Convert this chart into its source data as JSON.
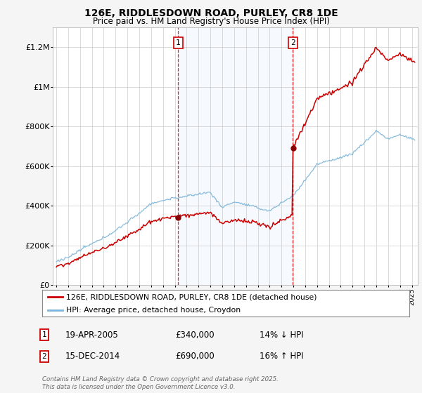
{
  "title": "126E, RIDDLESDOWN ROAD, PURLEY, CR8 1DE",
  "subtitle": "Price paid vs. HM Land Registry's House Price Index (HPI)",
  "footnote": "Contains HM Land Registry data © Crown copyright and database right 2025.\nThis data is licensed under the Open Government Licence v3.0.",
  "legend_label_red": "126E, RIDDLESDOWN ROAD, PURLEY, CR8 1DE (detached house)",
  "legend_label_blue": "HPI: Average price, detached house, Croydon",
  "sale1_label": "1",
  "sale1_date": "19-APR-2005",
  "sale1_price": "£340,000",
  "sale1_hpi": "14% ↓ HPI",
  "sale2_label": "2",
  "sale2_date": "15-DEC-2014",
  "sale2_price": "£690,000",
  "sale2_hpi": "16% ↑ HPI",
  "ylim": [
    0,
    1300000
  ],
  "yticks": [
    0,
    200000,
    400000,
    600000,
    800000,
    1000000,
    1200000
  ],
  "ytick_labels": [
    "£0",
    "£200K",
    "£400K",
    "£600K",
    "£800K",
    "£1M",
    "£1.2M"
  ],
  "background_color": "#f5f5f5",
  "plot_bg_color": "#ffffff",
  "hpi_color": "#7ab4d8",
  "price_color": "#cc0000",
  "sale1_x": 2005.29,
  "sale2_x": 2014.96,
  "vline1_x": 2005.29,
  "vline2_x": 2014.96,
  "marker_color": "#880000",
  "sale_marker_size": 6,
  "xmin": 1994.7,
  "xmax": 2025.5
}
